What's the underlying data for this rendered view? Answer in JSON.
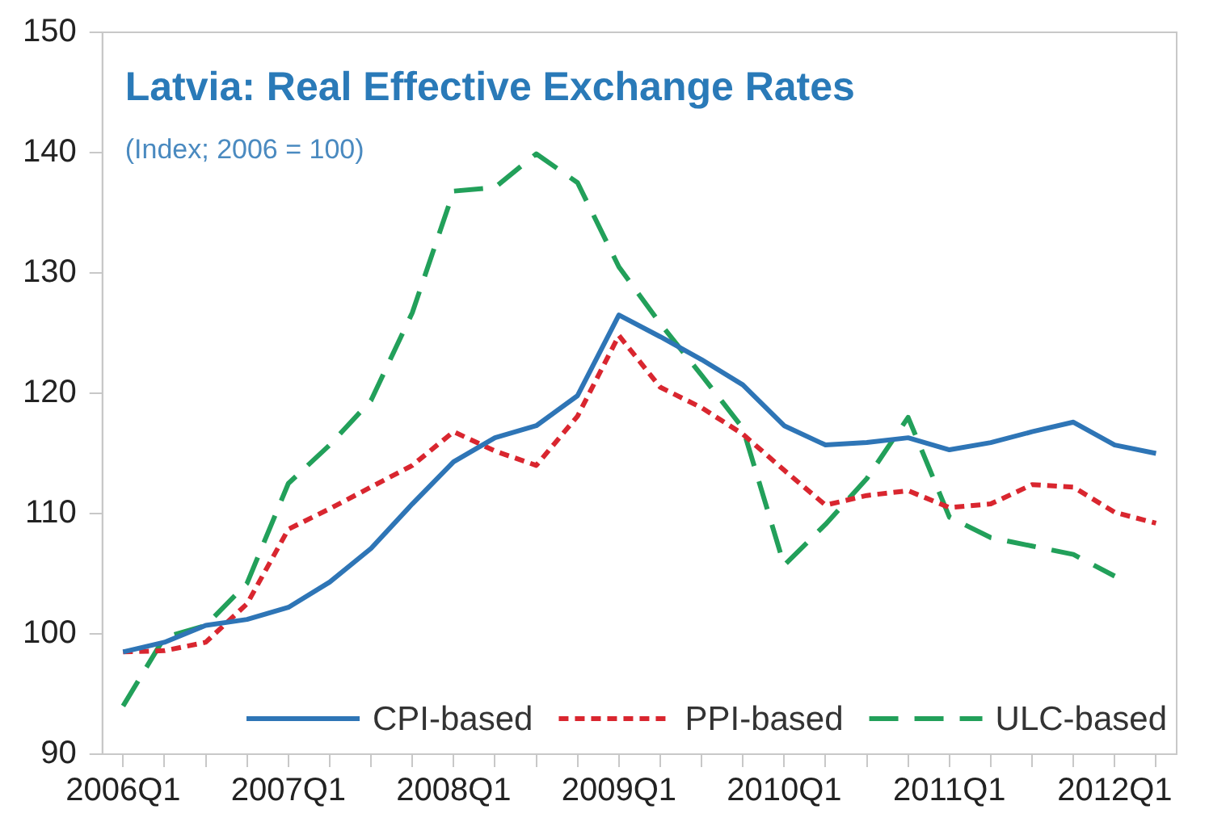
{
  "chart_data": {
    "type": "line",
    "title": "Latvia: Real Effective Exchange Rates",
    "subtitle": "(Index; 2006 = 100)",
    "categories": [
      "2006Q1",
      null,
      null,
      null,
      "2007Q1",
      null,
      null,
      null,
      "2008Q1",
      null,
      null,
      null,
      "2009Q1",
      null,
      null,
      null,
      "2010Q1",
      null,
      null,
      null,
      "2011Q1",
      null,
      null,
      null,
      "2012Q1",
      null
    ],
    "series": [
      {
        "name": "CPI-based",
        "color": "#2e75b6",
        "line_style": "solid",
        "values": [
          98.5,
          99.3,
          100.7,
          101.2,
          102.2,
          104.3,
          107.1,
          110.8,
          114.3,
          116.3,
          117.3,
          119.8,
          126.5,
          124.7,
          122.8,
          120.7,
          117.3,
          115.7,
          115.9,
          116.3,
          115.3,
          115.9,
          116.8,
          117.6,
          115.7,
          115.0
        ]
      },
      {
        "name": "PPI-based",
        "color": "#d9262f",
        "line_style": "dotted",
        "values": [
          98.5,
          98.6,
          99.3,
          102.5,
          108.7,
          110.4,
          112.2,
          114.0,
          116.8,
          115.2,
          114.0,
          118.1,
          124.8,
          120.5,
          118.8,
          116.6,
          113.6,
          110.7,
          111.5,
          111.9,
          110.5,
          110.8,
          112.4,
          112.2,
          110.1,
          109.2
        ]
      },
      {
        "name": "ULC-based",
        "color": "#22a05a",
        "line_style": "dashed",
        "values": [
          94.0,
          99.7,
          100.7,
          104.2,
          112.5,
          115.7,
          119.4,
          126.7,
          136.8,
          137.1,
          139.9,
          137.5,
          130.5,
          125.8,
          121.5,
          117.1,
          105.7,
          109.1,
          112.9,
          118.0,
          109.7,
          108.0,
          107.3,
          106.6,
          104.8,
          null
        ]
      }
    ],
    "ylim": [
      90,
      150
    ],
    "yticks": [
      90,
      100,
      110,
      120,
      130,
      140,
      150
    ],
    "grid": false,
    "legend": "bottom",
    "marker": "none"
  }
}
